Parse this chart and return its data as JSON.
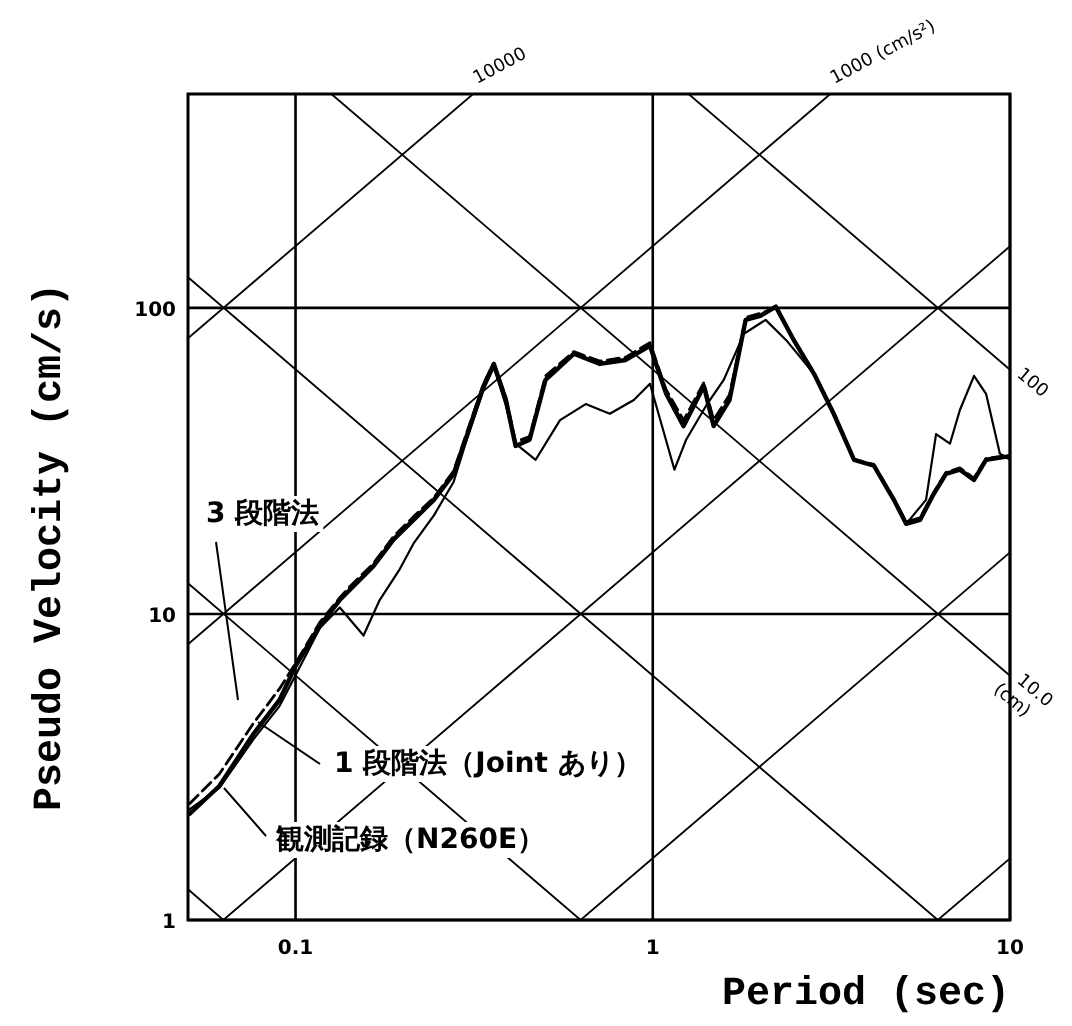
{
  "chart_data": {
    "type": "line",
    "xlabel": "Period (sec)",
    "ylabel": "Pseudo Velocity (cm/s)",
    "log": "xy",
    "grid": true,
    "xlim": [
      0.05,
      10
    ],
    "ylim": [
      1,
      500
    ],
    "xticks": [
      0.1,
      1,
      10
    ],
    "yticks": [
      1,
      10,
      100
    ],
    "annotations": [
      {
        "text": "10000",
        "x": 0.314,
        "y": 500
      },
      {
        "text": "1000 (cm/s²)",
        "x": 3.14,
        "y": 500
      },
      {
        "text": "100",
        "x": 10,
        "y": 62.8
      },
      {
        "text": "10.0 (cm)",
        "x": 10,
        "y": 6.28
      }
    ],
    "series": [
      {
        "name": "3 段階法",
        "color": "#000000",
        "line_style": "dashed",
        "x": [
          0.0505,
          0.0612,
          0.0763,
          0.0902,
          0.1,
          0.117,
          0.133,
          0.142,
          0.165,
          0.188,
          0.214,
          0.244,
          0.277,
          0.299,
          0.336,
          0.359,
          0.388,
          0.413,
          0.452,
          0.501,
          0.601,
          0.711,
          0.84,
          0.982,
          1.09,
          1.22,
          1.39,
          1.48,
          1.64,
          1.82,
          2.0,
          2.21,
          2.48,
          2.83,
          3.21,
          3.66,
          4.16,
          4.73,
          5.12,
          5.6,
          6.12,
          6.62,
          7.24,
          7.93,
          8.57,
          10
        ],
        "values": [
          2.4,
          3.0,
          4.4,
          5.7,
          6.9,
          9.4,
          11.3,
          12.3,
          14.6,
          17.9,
          20.8,
          24.0,
          29.3,
          38.0,
          56.5,
          66.0,
          51.0,
          36.5,
          38.0,
          60.0,
          72.0,
          67.0,
          69.0,
          77.0,
          54.0,
          43.0,
          57.0,
          43.0,
          52.0,
          93.0,
          96.0,
          100,
          79.0,
          61.0,
          45.5,
          32.0,
          30.8,
          23.8,
          20.0,
          20.6,
          25.0,
          29.0,
          30.0,
          27.8,
          32.2,
          33.0
        ]
      },
      {
        "name": "1 段階法（Joint あり）",
        "color": "#000000",
        "x": [
          0.0505,
          0.0612,
          0.0763,
          0.0902,
          0.1,
          0.117,
          0.133,
          0.155,
          0.172,
          0.195,
          0.214,
          0.244,
          0.277,
          0.299,
          0.336,
          0.359,
          0.388,
          0.413,
          0.47,
          0.55,
          0.649,
          0.758,
          0.885,
          0.982,
          1.15,
          1.24,
          1.41,
          1.58,
          1.8,
          2.07,
          2.36,
          2.83,
          3.21,
          3.66,
          4.16,
          4.73,
          5.12,
          5.82,
          6.21,
          6.79,
          7.24,
          7.93,
          8.57,
          9.37,
          10
        ],
        "values": [
          2.3,
          2.7,
          3.9,
          5.0,
          6.3,
          9.0,
          10.5,
          8.5,
          11.1,
          13.9,
          17.0,
          21.0,
          27.0,
          36.0,
          54.0,
          64.0,
          48.0,
          36.0,
          31.9,
          43.0,
          48.5,
          45.1,
          50.0,
          56.5,
          29.6,
          37.1,
          47.9,
          58.2,
          82.3,
          91.4,
          78.6,
          60.8,
          45.1,
          31.9,
          30.5,
          23.6,
          19.7,
          23.6,
          38.7,
          36.0,
          46.4,
          60.0,
          52.4,
          33.4,
          31.9
        ]
      },
      {
        "name": "観測記録（N260E）",
        "color": "#000000",
        "x": [
          0.0505,
          0.0612,
          0.0763,
          0.0902,
          0.1,
          0.117,
          0.133,
          0.142,
          0.165,
          0.188,
          0.214,
          0.244,
          0.277,
          0.299,
          0.336,
          0.359,
          0.388,
          0.413,
          0.452,
          0.501,
          0.601,
          0.711,
          0.84,
          0.982,
          1.09,
          1.22,
          1.39,
          1.48,
          1.64,
          1.82,
          2.0,
          2.21,
          2.48,
          2.83,
          3.21,
          3.66,
          4.16,
          4.73,
          5.12,
          5.6,
          6.12,
          6.62,
          7.24,
          7.93,
          8.57,
          10
        ],
        "values": [
          2.22,
          2.74,
          4.06,
          5.24,
          6.76,
          9.15,
          11.1,
          12.0,
          14.3,
          17.5,
          20.3,
          23.6,
          28.7,
          37.1,
          55.6,
          65.6,
          50.0,
          35.4,
          37.1,
          58.2,
          70.8,
          65.6,
          67.6,
          75.2,
          52.4,
          41.1,
          55.6,
          41.1,
          50.0,
          91.4,
          94.2,
          101,
          78.6,
          60.8,
          45.1,
          31.9,
          30.5,
          23.6,
          19.7,
          20.3,
          24.7,
          28.7,
          29.6,
          27.4,
          31.9,
          32.8
        ]
      },
      {
        "color": "#000000",
        "x": [
          6.28,
          10
        ],
        "values": [
          1,
          1.59
        ]
      },
      {
        "color": "#000000",
        "x": [
          0.628,
          10
        ],
        "values": [
          1,
          15.9
        ]
      },
      {
        "color": "#000000",
        "x": [
          0.0628,
          10
        ],
        "values": [
          1,
          159
        ]
      },
      {
        "color": "#000000",
        "x": [
          0.05,
          3.14
        ],
        "values": [
          7.96,
          500
        ]
      },
      {
        "color": "#000000",
        "x": [
          0.05,
          0.314
        ],
        "values": [
          79.6,
          500
        ]
      },
      {
        "color": "#000000",
        "x": [
          0.05,
          0.0628
        ],
        "values": [
          1.26,
          1
        ]
      },
      {
        "color": "#000000",
        "x": [
          0.05,
          0.628
        ],
        "values": [
          12.6,
          1
        ]
      },
      {
        "color": "#000000",
        "x": [
          0.05,
          6.28
        ],
        "values": [
          126,
          1
        ]
      },
      {
        "color": "#000000",
        "x": [
          0.126,
          10
        ],
        "values": [
          500,
          6.28
        ]
      },
      {
        "color": "#000000",
        "x": [
          1.26,
          10
        ],
        "values": [
          500,
          62.8
        ]
      }
    ]
  }
}
